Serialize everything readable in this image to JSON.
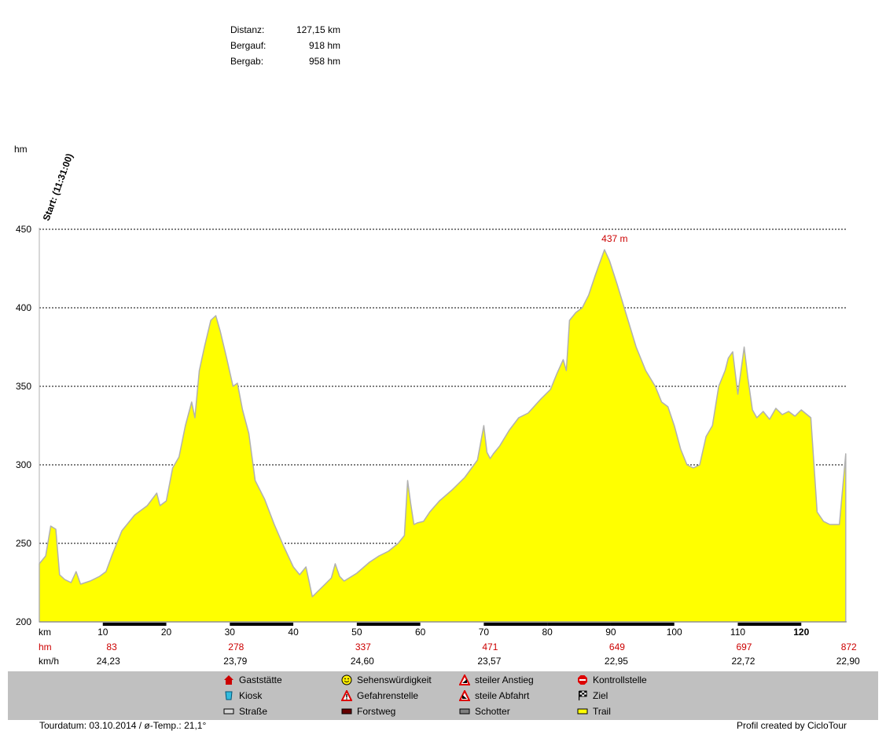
{
  "stats": {
    "distance_label": "Distanz:",
    "distance_value": "127,15 km",
    "ascent_label": "Bergauf:",
    "ascent_value": "918 hm",
    "descent_label": "Bergab:",
    "descent_value": "958 hm"
  },
  "start_label": "Start: (11:31:00)",
  "chart_data": {
    "type": "area",
    "ylabel": "hm",
    "xlabel": "km",
    "ylim": [
      200,
      450
    ],
    "xlim": [
      0,
      127.15
    ],
    "y_ticks": [
      200,
      250,
      300,
      350,
      400,
      450
    ],
    "x_ticks": [
      10,
      20,
      30,
      40,
      50,
      60,
      70,
      80,
      90,
      100,
      110,
      120
    ],
    "grid": "horizontal-dashed",
    "fill_color": "#ffff00",
    "line_color": "#b0b0b0",
    "peak_label": "437 m",
    "peak": [
      89,
      437
    ],
    "x": [
      0,
      1,
      1.8,
      2.6,
      3.2,
      4,
      5,
      5.8,
      6.5,
      8,
      9.5,
      10.5,
      11.5,
      13,
      15,
      17,
      18.5,
      19,
      20,
      21,
      22,
      23,
      24,
      24.5,
      25.2,
      26,
      27,
      27.8,
      28.5,
      29.5,
      30.5,
      31.2,
      32,
      33,
      34,
      35.5,
      37,
      38.5,
      40,
      41,
      42,
      43,
      44,
      45,
      46,
      46.6,
      47.3,
      48,
      50,
      52,
      53.5,
      55,
      56.5,
      57.5,
      58,
      58.5,
      59,
      59.5,
      60.5,
      61.5,
      63,
      65,
      67,
      69,
      70,
      70.5,
      71,
      71.5,
      72.5,
      74,
      75.5,
      77,
      79,
      80.5,
      81.5,
      82.5,
      83,
      83.5,
      84.5,
      85.5,
      86.5,
      87.5,
      88.2,
      89,
      89.8,
      91,
      92.5,
      94,
      95.5,
      97,
      98,
      99,
      100,
      101,
      102,
      103,
      104,
      105,
      106,
      107,
      108,
      108.5,
      109.2,
      110,
      111,
      111.6,
      112.3,
      113,
      114,
      115,
      116,
      117,
      118,
      119,
      120,
      121.5,
      122.5,
      123.5,
      124.5,
      126,
      127
    ],
    "y": [
      237,
      242,
      261,
      259,
      230,
      227,
      225,
      232,
      224,
      226,
      229,
      232,
      243,
      258,
      268,
      274,
      282,
      274,
      277,
      298,
      305,
      325,
      340,
      330,
      360,
      375,
      392,
      395,
      385,
      368,
      350,
      352,
      335,
      320,
      290,
      278,
      262,
      248,
      235,
      230,
      235,
      216,
      220,
      224,
      228,
      237,
      229,
      226,
      231,
      238,
      242,
      245,
      250,
      255,
      290,
      275,
      262,
      263,
      264,
      270,
      277,
      284,
      292,
      303,
      325,
      308,
      304,
      307,
      312,
      322,
      330,
      333,
      342,
      348,
      358,
      367,
      360,
      392,
      397,
      400,
      408,
      420,
      428,
      437,
      430,
      415,
      395,
      375,
      360,
      350,
      340,
      337,
      325,
      310,
      300,
      298,
      300,
      318,
      325,
      350,
      360,
      368,
      372,
      345,
      375,
      355,
      335,
      330,
      334,
      329,
      336,
      332,
      334,
      331,
      335,
      330,
      270,
      264,
      262,
      262,
      307
    ],
    "bands": {
      "segments": [
        [
          10,
          20,
          "#000000"
        ],
        [
          30,
          40,
          "#000000"
        ],
        [
          50,
          60,
          "#000000"
        ],
        [
          70,
          80,
          "#000000"
        ],
        [
          80,
          90,
          "#000000"
        ],
        [
          90,
          100,
          "#000000"
        ],
        [
          110,
          120,
          "#000000"
        ]
      ]
    },
    "table": {
      "row_labels": [
        "km",
        "hm",
        "km/h"
      ],
      "hm": [
        {
          "x": 10,
          "value": "83"
        },
        {
          "x": 30,
          "value": "278"
        },
        {
          "x": 50,
          "value": "337"
        },
        {
          "x": 70,
          "value": "471"
        },
        {
          "x": 90,
          "value": "649"
        },
        {
          "x": 110,
          "value": "697"
        },
        {
          "x": 126.5,
          "value": "872"
        }
      ],
      "kmh": [
        {
          "x": 10,
          "value": "24,23"
        },
        {
          "x": 30,
          "value": "23,79"
        },
        {
          "x": 50,
          "value": "24,60"
        },
        {
          "x": 70,
          "value": "23,57"
        },
        {
          "x": 90,
          "value": "22,95"
        },
        {
          "x": 110,
          "value": "22,72"
        },
        {
          "x": 126.5,
          "value": "22,90"
        }
      ]
    }
  },
  "legend": {
    "items": [
      {
        "label": "Gaststätte",
        "icon": "house-icon",
        "color": "#cc0000"
      },
      {
        "label": "Kiosk",
        "icon": "kiosk-icon",
        "color": "#33bbdd"
      },
      {
        "label": "Straße",
        "icon": "road-swatch-icon",
        "color": "#d8d8d8"
      },
      {
        "label": "Sehenswürdigkeit",
        "icon": "smiley-icon",
        "color": "#ffee00"
      },
      {
        "label": "Gefahrenstelle",
        "icon": "warning-icon",
        "color": "#dd0000"
      },
      {
        "label": "Forstweg",
        "icon": "forest-road-swatch-icon",
        "color": "#660000"
      },
      {
        "label": "steiler Anstieg",
        "icon": "steep-climb-icon",
        "color": "#dd0000"
      },
      {
        "label": "steile Abfahrt",
        "icon": "steep-descent-icon",
        "color": "#dd0000"
      },
      {
        "label": "Schotter",
        "icon": "gravel-swatch-icon",
        "color": "#808080"
      },
      {
        "label": "Kontrollstelle",
        "icon": "stop-icon",
        "color": "#dd0000"
      },
      {
        "label": "Ziel",
        "icon": "checkered-flag-icon",
        "color": "#000000"
      },
      {
        "label": "Trail",
        "icon": "trail-swatch-icon",
        "color": "#ffff00"
      }
    ]
  },
  "footer": {
    "tour_date": "Tourdatum: 03.10.2014  /  ø-Temp.: 21,1°",
    "credit": "Profil created by CicloTour"
  }
}
